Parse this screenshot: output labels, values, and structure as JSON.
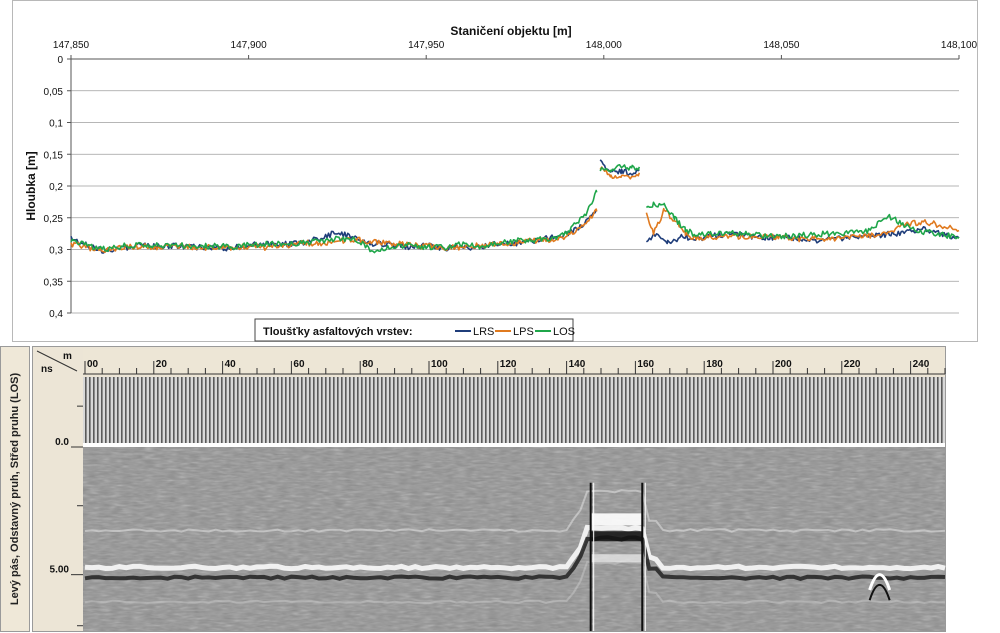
{
  "chart_data": [
    {
      "type": "line",
      "title": "",
      "xlabel": "Staničení objektu [m]",
      "ylabel": "Hloubka [m]",
      "xlim": [
        147850,
        148100
      ],
      "ylim": [
        0,
        0.4
      ],
      "y_inverted": true,
      "x_tick_labels": [
        "147,850",
        "147,900",
        "147,950",
        "148,000",
        "148,050",
        "148,100"
      ],
      "x_ticks": [
        147850,
        147900,
        147950,
        148000,
        148050,
        148100
      ],
      "y_tick_labels": [
        "0",
        "0,05",
        "0,1",
        "0,15",
        "0,2",
        "0,25",
        "0,3",
        "0,35",
        "0,4"
      ],
      "y_ticks": [
        0,
        0.05,
        0.1,
        0.15,
        0.2,
        0.25,
        0.3,
        0.35,
        0.4
      ],
      "grid": "horizontal",
      "legend_title": "Tloušťky asfaltových vrstev:",
      "legend_position": "bottom",
      "series": [
        {
          "name": "LRS",
          "color": "#1f3d7a",
          "segments": [
            {
              "x": [
                147850,
                147855,
                147860,
                147865,
                147870,
                147875,
                147880,
                147885,
                147890,
                147895,
                147900,
                147905,
                147910,
                147915,
                147920,
                147925,
                147930,
                147935,
                147940,
                147945,
                147950,
                147955,
                147960,
                147965,
                147970,
                147975,
                147980,
                147985,
                147990,
                147995,
                147998
              ],
              "y": [
                0.282,
                0.295,
                0.303,
                0.297,
                0.293,
                0.295,
                0.294,
                0.296,
                0.297,
                0.298,
                0.293,
                0.291,
                0.292,
                0.289,
                0.283,
                0.272,
                0.283,
                0.291,
                0.292,
                0.296,
                0.294,
                0.298,
                0.296,
                0.297,
                0.291,
                0.29,
                0.287,
                0.281,
                0.276,
                0.258,
                0.238
              ]
            },
            {
              "x": [
                147999,
                148002,
                148005,
                148008,
                148010
              ],
              "y": [
                0.163,
                0.178,
                0.176,
                0.181,
                0.174
              ]
            },
            {
              "x": [
                148012,
                148014,
                148018,
                148022,
                148026,
                148030,
                148035,
                148040,
                148045,
                148050,
                148055,
                148060,
                148065,
                148070,
                148075,
                148080,
                148085,
                148090,
                148095,
                148100
              ],
              "y": [
                0.29,
                0.276,
                0.29,
                0.28,
                0.283,
                0.279,
                0.276,
                0.278,
                0.282,
                0.281,
                0.283,
                0.285,
                0.283,
                0.281,
                0.279,
                0.276,
                0.274,
                0.268,
                0.276,
                0.282
              ]
            }
          ]
        },
        {
          "name": "LPS",
          "color": "#e07a1f",
          "segments": [
            {
              "x": [
                147850,
                147855,
                147860,
                147865,
                147870,
                147875,
                147880,
                147885,
                147890,
                147895,
                147900,
                147905,
                147910,
                147915,
                147920,
                147925,
                147930,
                147935,
                147940,
                147945,
                147950,
                147955,
                147960,
                147965,
                147970,
                147975,
                147980,
                147985,
                147990,
                147995,
                147998
              ],
              "y": [
                0.291,
                0.297,
                0.301,
                0.296,
                0.295,
                0.296,
                0.294,
                0.297,
                0.296,
                0.298,
                0.295,
                0.297,
                0.294,
                0.29,
                0.29,
                0.287,
                0.284,
                0.288,
                0.29,
                0.293,
                0.295,
                0.297,
                0.296,
                0.294,
                0.292,
                0.289,
                0.286,
                0.284,
                0.279,
                0.257,
                0.24
              ]
            },
            {
              "x": [
                147999,
                148002,
                148005,
                148008,
                148010
              ],
              "y": [
                0.17,
                0.186,
                0.182,
                0.186,
                0.179
              ]
            },
            {
              "x": [
                148012,
                148014,
                148017,
                148020,
                148023,
                148026,
                148030,
                148035,
                148040,
                148045,
                148050,
                148055,
                148060,
                148065,
                148070,
                148075,
                148080,
                148085,
                148090,
                148095,
                148100
              ],
              "y": [
                0.24,
                0.275,
                0.238,
                0.255,
                0.275,
                0.283,
                0.281,
                0.278,
                0.28,
                0.279,
                0.281,
                0.284,
                0.282,
                0.284,
                0.279,
                0.278,
                0.272,
                0.26,
                0.256,
                0.262,
                0.27
              ]
            }
          ]
        },
        {
          "name": "LOS",
          "color": "#1fa64a",
          "segments": [
            {
              "x": [
                147850,
                147855,
                147860,
                147865,
                147870,
                147875,
                147880,
                147885,
                147890,
                147895,
                147900,
                147905,
                147910,
                147915,
                147920,
                147925,
                147930,
                147935,
                147940,
                147945,
                147950,
                147955,
                147960,
                147965,
                147970,
                147975,
                147980,
                147985,
                147990,
                147995,
                147998
              ],
              "y": [
                0.287,
                0.294,
                0.3,
                0.294,
                0.293,
                0.294,
                0.293,
                0.295,
                0.294,
                0.296,
                0.293,
                0.291,
                0.292,
                0.29,
                0.287,
                0.283,
                0.283,
                0.302,
                0.296,
                0.293,
                0.296,
                0.297,
                0.292,
                0.295,
                0.289,
                0.286,
                0.285,
                0.284,
                0.27,
                0.245,
                0.21
              ]
            },
            {
              "x": [
                147999,
                148002,
                148005,
                148008,
                148010
              ],
              "y": [
                0.172,
                0.176,
                0.168,
                0.172,
                0.17
              ]
            },
            {
              "x": [
                148012,
                148014,
                148017,
                148020,
                148023,
                148026,
                148030,
                148035,
                148040,
                148045,
                148050,
                148055,
                148060,
                148065,
                148070,
                148075,
                148080,
                148085,
                148090,
                148095,
                148100
              ],
              "y": [
                0.232,
                0.228,
                0.232,
                0.252,
                0.268,
                0.278,
                0.275,
                0.274,
                0.276,
                0.278,
                0.279,
                0.278,
                0.276,
                0.275,
                0.273,
                0.271,
                0.246,
                0.263,
                0.272,
                0.276,
                0.282
              ]
            }
          ]
        }
      ]
    },
    {
      "type": "heatmap",
      "description_label": "Levý pás, Odstavný pruh, Střed pruhu (LOS)",
      "x_unit": "m",
      "y_unit": "ns",
      "xlim": [
        0,
        250
      ],
      "x_tick_labels": [
        "00",
        "20",
        "40",
        "60",
        "80",
        "100",
        "120",
        "140",
        "160",
        "180",
        "200",
        "220",
        "240"
      ],
      "x_ticks": [
        0,
        20,
        40,
        60,
        80,
        100,
        120,
        140,
        160,
        180,
        200,
        220,
        240
      ],
      "y_tick_labels": [
        "0.0",
        "5.00"
      ],
      "y_ticks": [
        0,
        5
      ],
      "ylim": [
        -2.1,
        7
      ]
    }
  ]
}
